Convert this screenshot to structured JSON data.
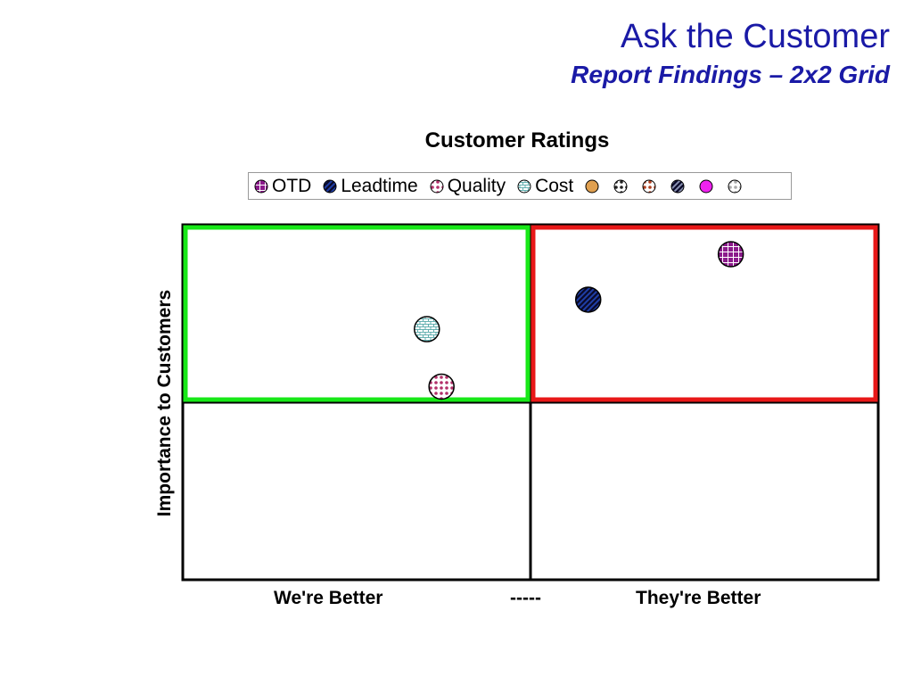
{
  "header": {
    "title": "Ask the Customer",
    "subtitle": "Report Findings – 2x2 Grid"
  },
  "chart_data": {
    "type": "scatter",
    "title": "Customer Ratings",
    "ylabel": "Importance to Customers",
    "xlabels": {
      "left": "We're Better",
      "middle": "-----",
      "right": "They're Better"
    },
    "xlim": [
      0,
      10
    ],
    "ylim": [
      0,
      10
    ],
    "grid": "2x2",
    "legend_position": "top",
    "highlights": [
      {
        "quadrant": "top-left",
        "color": "#18e818"
      },
      {
        "quadrant": "top-right",
        "color": "#e81818"
      }
    ],
    "legend": [
      {
        "label": "OTD",
        "color": "#8b1a8b",
        "pattern": "grid"
      },
      {
        "label": "Leadtime",
        "color": "#1f3fa8",
        "pattern": "diagonal"
      },
      {
        "label": "Quality",
        "color": "#b3306a",
        "pattern": "dots"
      },
      {
        "label": "Cost",
        "color": "#3a9c9c",
        "pattern": "brick"
      },
      {
        "label": "",
        "color": "#e0a050",
        "pattern": "solid"
      },
      {
        "label": "",
        "color": "#222222",
        "pattern": "dots"
      },
      {
        "label": "",
        "color": "#b04020",
        "pattern": "dots"
      },
      {
        "label": "",
        "color": "#8890b0",
        "pattern": "diagonal"
      },
      {
        "label": "",
        "color": "#ee22ee",
        "pattern": "solid"
      },
      {
        "label": "",
        "color": "#aaaaaa",
        "pattern": "dots"
      }
    ],
    "series": [
      {
        "name": "OTD",
        "x": 7.88,
        "y": 9.17,
        "color": "#8b1a8b",
        "pattern": "grid"
      },
      {
        "name": "Leadtime",
        "x": 5.83,
        "y": 7.89,
        "color": "#1f3fa8",
        "pattern": "diagonal"
      },
      {
        "name": "Cost",
        "x": 3.51,
        "y": 7.06,
        "color": "#3a9c9c",
        "pattern": "brick"
      },
      {
        "name": "Quality",
        "x": 3.72,
        "y": 5.44,
        "color": "#b3306a",
        "pattern": "dots"
      }
    ]
  }
}
